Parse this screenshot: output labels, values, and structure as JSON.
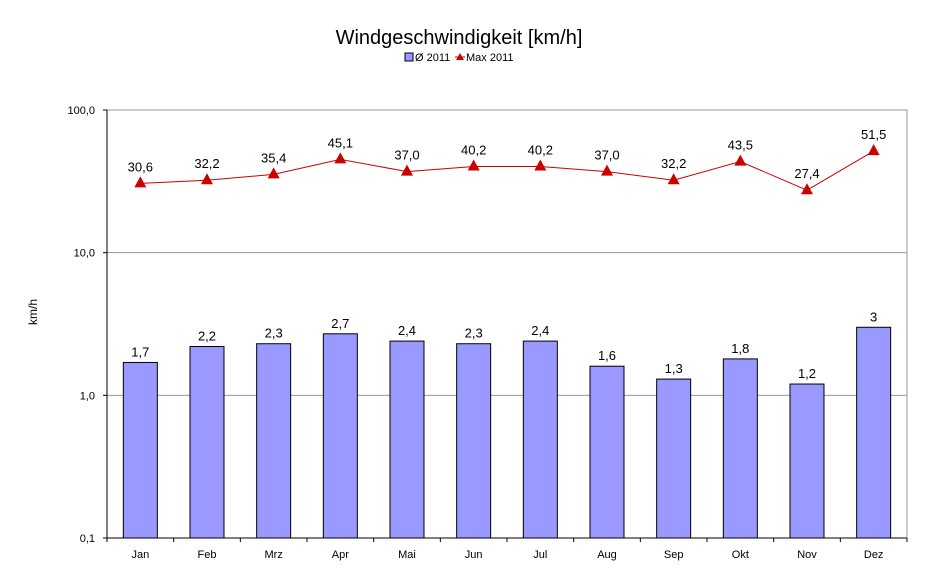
{
  "chart_data": {
    "type": "bar",
    "title": "Windgeschwindigkeit [km/h]",
    "xlabel": "",
    "ylabel": "km/h",
    "yscale": "log",
    "ylim": [
      0.1,
      100
    ],
    "yticks": [
      0.1,
      1,
      10,
      100
    ],
    "ytick_labels": [
      "0,1",
      "1,0",
      "10,0",
      "100,0"
    ],
    "grid": true,
    "legend_position": "top",
    "categories": [
      "Jan",
      "Feb",
      "Mrz",
      "Apr",
      "Mai",
      "Jun",
      "Jul",
      "Aug",
      "Sep",
      "Okt",
      "Nov",
      "Dez"
    ],
    "series": [
      {
        "name": "Ø 2011",
        "kind": "bar",
        "color": "#9999ff",
        "values": [
          1.7,
          2.2,
          2.3,
          2.7,
          2.4,
          2.3,
          2.4,
          1.6,
          1.3,
          1.8,
          1.2,
          3
        ],
        "labels": [
          "1,7",
          "2,2",
          "2,3",
          "2,7",
          "2,4",
          "2,3",
          "2,4",
          "1,6",
          "1,3",
          "1,8",
          "1,2",
          "3"
        ]
      },
      {
        "name": "Max 2011",
        "kind": "line",
        "marker": "triangle",
        "color": "#cc0000",
        "values": [
          30.6,
          32.2,
          35.4,
          45.1,
          37.0,
          40.2,
          40.2,
          37.0,
          32.2,
          43.5,
          27.4,
          51.5
        ],
        "labels": [
          "30,6",
          "32,2",
          "35,4",
          "45,1",
          "37,0",
          "40,2",
          "40,2",
          "37,0",
          "32,2",
          "43,5",
          "27,4",
          "51,5"
        ]
      }
    ]
  }
}
